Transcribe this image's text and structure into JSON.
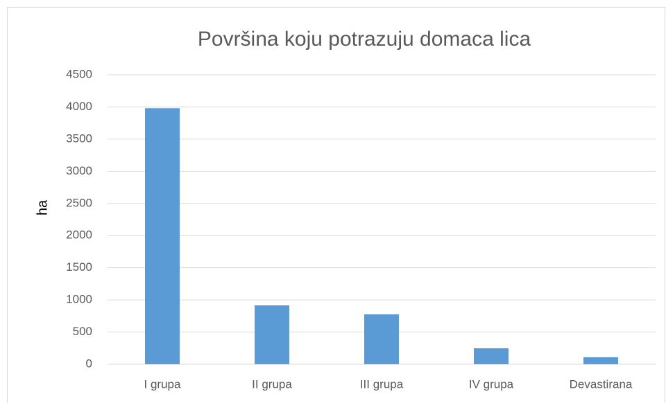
{
  "chart_data": {
    "type": "bar",
    "title": "Površina koju potrazuju domaca lica",
    "y_label": "ha",
    "categories": [
      "I grupa",
      "II grupa",
      "III grupa",
      "IV grupa",
      "Devastirana"
    ],
    "values": [
      3980,
      915,
      775,
      248,
      108
    ],
    "color": "#5b9bd5",
    "ylim": [
      0,
      4500
    ],
    "yticks": [
      0,
      500,
      1000,
      1500,
      2000,
      2500,
      3000,
      3500,
      4000,
      4500
    ],
    "grid": true
  }
}
